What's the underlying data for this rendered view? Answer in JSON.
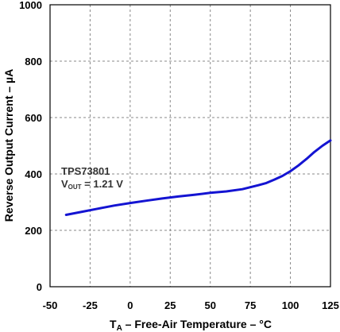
{
  "chart_data": {
    "type": "line",
    "xlabel": {
      "main": "T",
      "sub": "A",
      "rest": " – Free-Air Temperature – °C"
    },
    "ylabel": "Reverse Output Current – µA",
    "xlim": [
      -50,
      125
    ],
    "ylim": [
      0,
      1000
    ],
    "xticks": [
      -50,
      -25,
      0,
      25,
      50,
      75,
      100,
      125
    ],
    "yticks": [
      0,
      200,
      400,
      600,
      800,
      1000
    ],
    "grid": true,
    "annotation": {
      "line1": "TPS73801",
      "line2_main": "V",
      "line2_sub": "OUT",
      "line2_rest": " = 1.21 V"
    },
    "series": [
      {
        "color": "#1414d2",
        "x": [
          -40,
          -30,
          -20,
          -10,
          0,
          10,
          20,
          30,
          40,
          50,
          60,
          70,
          80,
          85,
          90,
          95,
          100,
          105,
          110,
          115,
          120,
          125
        ],
        "y": [
          255,
          266,
          277,
          288,
          297,
          305,
          313,
          320,
          326,
          333,
          338,
          346,
          360,
          368,
          380,
          393,
          410,
          430,
          453,
          478,
          500,
          519
        ]
      }
    ]
  }
}
